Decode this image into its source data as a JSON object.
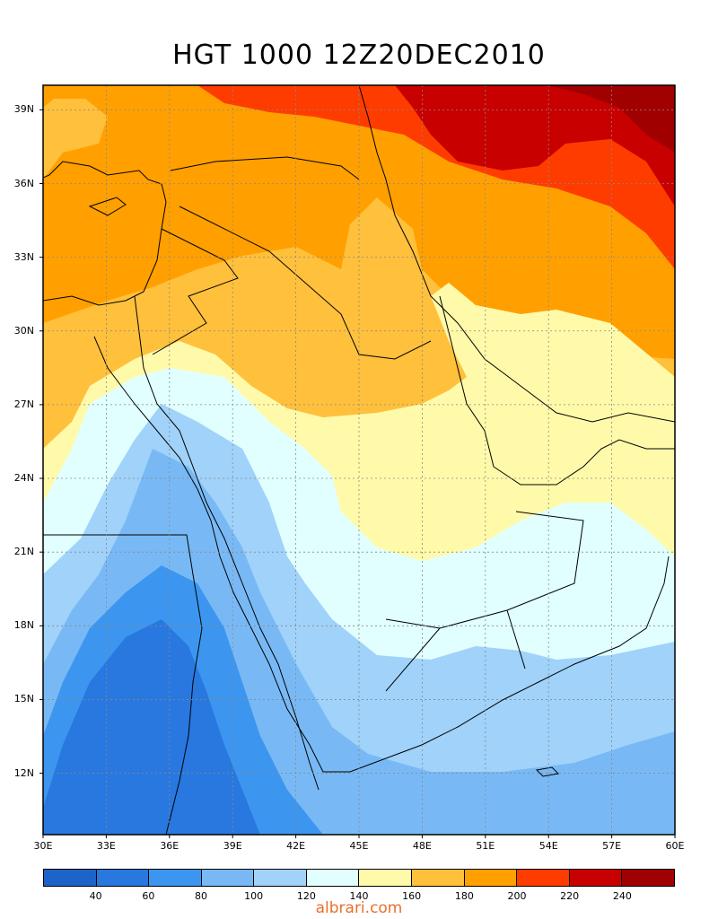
{
  "title": "HGT 1000 12Z20DEC2010",
  "watermark": "albrari.com",
  "map": {
    "lon_range": [
      30,
      60
    ],
    "lat_range": [
      9.5,
      40
    ],
    "grid": true,
    "lat_ticks": [
      {
        "value": 39,
        "label": "39N"
      },
      {
        "value": 36,
        "label": "36N"
      },
      {
        "value": 33,
        "label": "33N"
      },
      {
        "value": 30,
        "label": "30N"
      },
      {
        "value": 27,
        "label": "27N"
      },
      {
        "value": 24,
        "label": "24N"
      },
      {
        "value": 21,
        "label": "21N"
      },
      {
        "value": 18,
        "label": "18N"
      },
      {
        "value": 15,
        "label": "15N"
      },
      {
        "value": 12,
        "label": "12N"
      }
    ],
    "lon_ticks": [
      {
        "value": 30,
        "label": "30E"
      },
      {
        "value": 33,
        "label": "33E"
      },
      {
        "value": 36,
        "label": "36E"
      },
      {
        "value": 39,
        "label": "39E"
      },
      {
        "value": 42,
        "label": "42E"
      },
      {
        "value": 45,
        "label": "45E"
      },
      {
        "value": 48,
        "label": "48E"
      },
      {
        "value": 51,
        "label": "51E"
      },
      {
        "value": 54,
        "label": "54E"
      },
      {
        "value": 57,
        "label": "57E"
      },
      {
        "value": 60,
        "label": "60E"
      }
    ]
  },
  "colorbar": {
    "colors": [
      "#1e63c8",
      "#2878e0",
      "#3c96f0",
      "#78b9f5",
      "#a0d2fa",
      "#e1ffff",
      "#fffaaa",
      "#ffc03c",
      "#ffa000",
      "#ff3c00",
      "#c80000",
      "#a00000"
    ],
    "labels": [
      "40",
      "60",
      "80",
      "100",
      "120",
      "140",
      "160",
      "180",
      "200",
      "220",
      "240"
    ]
  }
}
